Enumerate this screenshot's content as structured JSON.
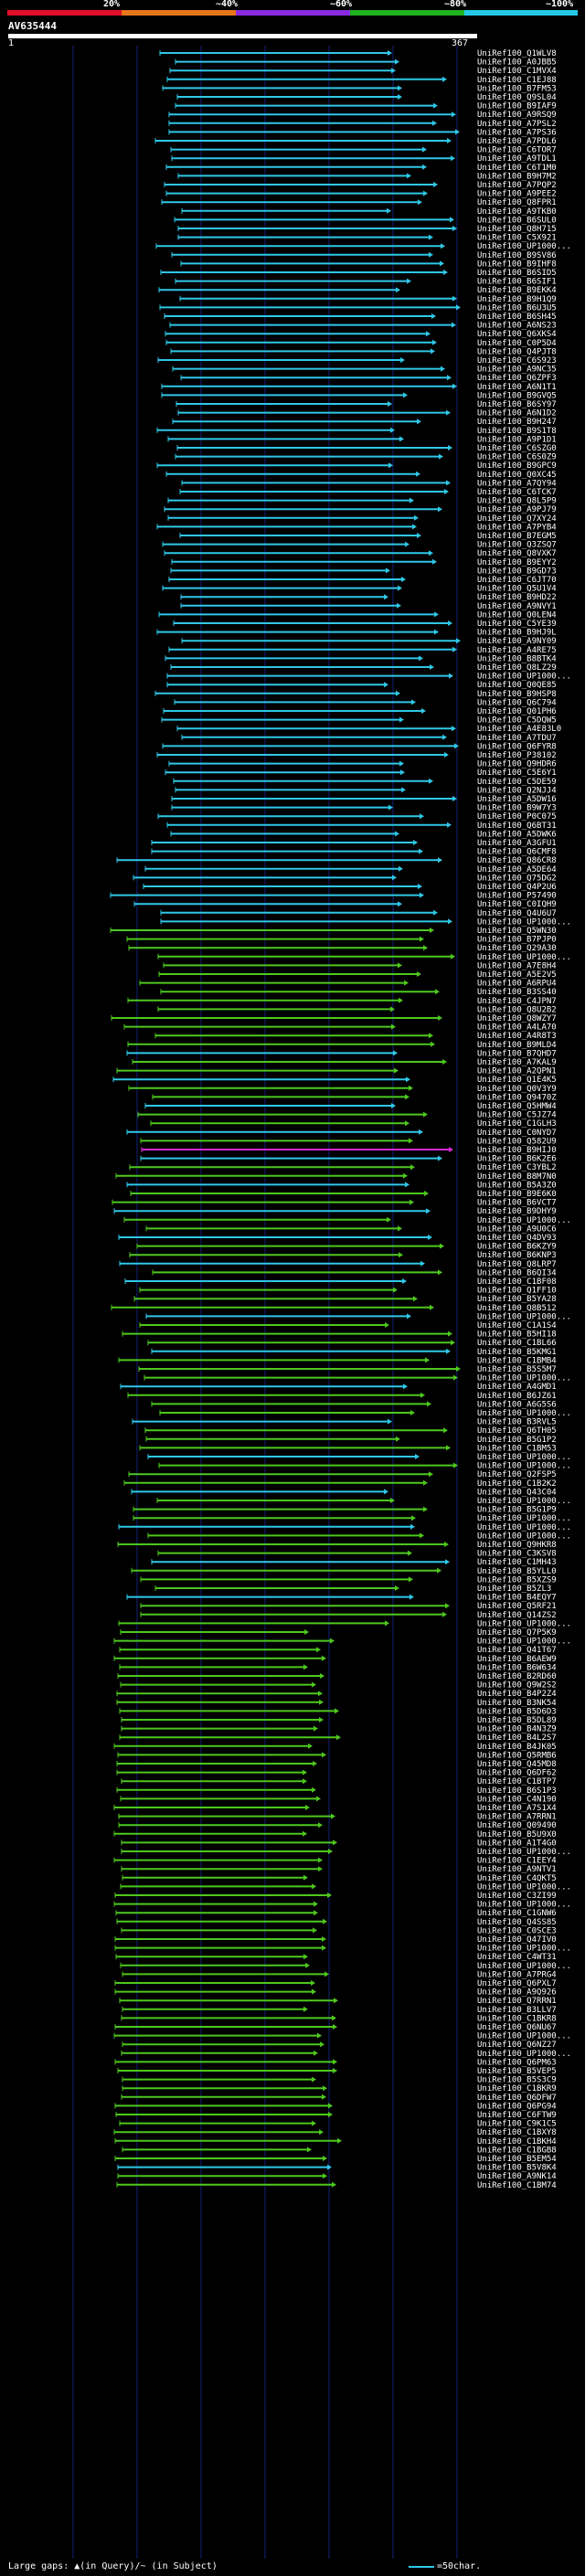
{
  "header": {
    "percent_labels": [
      "20%",
      "~40%",
      "~60%",
      "~80%",
      "~100%"
    ],
    "legend_colors": [
      "#e0102a",
      "#e8761a",
      "#8a2be2",
      "#21b221",
      "#24c8e6"
    ]
  },
  "query": {
    "id": "AV635444",
    "start": "1",
    "length": "367"
  },
  "palette": {
    "cyan": "#2fc8e8",
    "green": "#4ec81e",
    "magenta": "#d22ad2",
    "grid": "#16227a",
    "label": "#ffffff"
  },
  "hits": [
    "UniRef100_Q1WLV8",
    "UniRef100_A0JBB5",
    "UniRef100_C1MVX4",
    "UniRef100_C1EJ88",
    "UniRef100_B7FM53",
    "UniRef100_Q9SL04",
    "UniRef100_B9IAF9",
    "UniRef100_A9RSQ9",
    "UniRef100_A7PSL2",
    "UniRef100_A7PS36",
    "UniRef100_A7PDL6",
    "UniRef100_C6TOR7",
    "UniRef100_A9TDL1",
    "UniRef100_C6T1M0",
    "UniRef100_B9H7M2",
    "UniRef100_A7PQP2",
    "UniRef100_A9PEE2",
    "UniRef100_Q8FPR1",
    "UniRef100_A9TKB0",
    "UniRef100_B6SUL0",
    "UniRef100_Q8H715",
    "UniRef100_C5X921",
    "UniRef100_UP1000...",
    "UniRef100_B9SV86",
    "UniRef100_B9IHF8",
    "UniRef100_B6SID5",
    "UniRef100_B6SIF1",
    "UniRef100_B9EKK4",
    "UniRef100_B9H1Q9",
    "UniRef100_B6U3U5",
    "UniRef100_B6SH45",
    "UniRef100_A6NS23",
    "UniRef100_Q6XKS4",
    "UniRef100_C0P5D4",
    "UniRef100_Q4PJT8",
    "UniRef100_C6S923",
    "UniRef100_A9NC35",
    "UniRef100_Q6ZPF3",
    "UniRef100_A6N1T1",
    "UniRef100_B9GVQ5",
    "UniRef100_B6SY97",
    "UniRef100_A6N1D2",
    "UniRef100_B9H247",
    "UniRef100_B9S1T8",
    "UniRef100_A9P1D1",
    "UniRef100_C6SZG0",
    "UniRef100_C6S0Z9",
    "UniRef100_B9GPC9",
    "UniRef100_Q0XC45",
    "UniRef100_A7QY94",
    "UniRef100_C6TCK7",
    "UniRef100_Q8L5P9",
    "UniRef100_A9PJ79",
    "UniRef100_Q7XY24",
    "UniRef100_A7PYB4",
    "UniRef100_B7EGM5",
    "UniRef100_Q3ZSQ7",
    "UniRef100_Q8VXK7",
    "UniRef100_B9EYY2",
    "UniRef100_B9GD73",
    "UniRef100_C6JT70",
    "UniRef100_Q5U1V4",
    "UniRef100_B9HD22",
    "UniRef100_A9NVY1",
    "UniRef100_Q0LEN4",
    "UniRef100_C5YE39",
    "UniRef100_B9HJ9L",
    "UniRef100_A9NY09",
    "UniRef100_A4RE75",
    "UniRef100_B8BTK4",
    "UniRef100_Q8LZ29",
    "UniRef100_UP1000...",
    "UniRef100_Q0QE85",
    "UniRef100_B9HSP8",
    "UniRef100_Q6C794",
    "UniRef100_Q01PH6",
    "UniRef100_C5DQW5",
    "UniRef100_A4E83L0",
    "UniRef100_A7TDU7",
    "UniRef100_Q6FYR8",
    "UniRef100_P38102",
    "UniRef100_Q9HDR6",
    "UniRef100_C5E6Y1",
    "UniRef100_C5DE59",
    "UniRef100_Q2NJJ4",
    "UniRef100_A5DW16",
    "UniRef100_B9W7Y3",
    "UniRef100_P0C075",
    "UniRef100_Q6BT31",
    "UniRef100_A5DWK6",
    "UniRef100_A3GFU1",
    "UniRef100_Q6CMF8",
    "UniRef100_Q86CR8",
    "UniRef100_A5DE64",
    "UniRef100_Q75DG2",
    "UniRef100_Q4P2U6",
    "UniRef100_P57490",
    "UniRef100_C0IQH9",
    "UniRef100_Q4U6U7",
    "UniRef100_UP1000...",
    "UniRef100_Q5WN30",
    "UniRef100_B7PJP0",
    "UniRef100_Q29A30",
    "UniRef100_UP1000...",
    "UniRef100_A7E8H4",
    "UniRef100_A5E2V5",
    "UniRef100_A6RPU4",
    "UniRef100_B3SS40",
    "UniRef100_C4JPN7",
    "UniRef100_Q8U2B2",
    "UniRef100_Q8WZY7",
    "UniRef100_A4LA70",
    "UniRef100_A4R8T3",
    "UniRef100_B9MLD4",
    "UniRef100_B7QHD7",
    "UniRef100_A7KAL9",
    "UniRef100_A2QPN1",
    "UniRef100_Q1E4K5",
    "UniRef100_Q0V3Y9",
    "UniRef100_Q9470Z",
    "UniRef100_Q5HMW4",
    "UniRef100_C5JZ74",
    "UniRef100_C1GLH3",
    "UniRef100_C0NYD7",
    "UniRef100_Q582U9",
    "UniRef100_B9HIJ0",
    "UniRef100_B6K2E6",
    "UniRef100_C3YBL2",
    "UniRef100_B8M7N0",
    "UniRef100_B5A3Z0",
    "UniRef100_B9E6K0",
    "UniRef100_B6VCT7",
    "UniRef100_B9DHY9",
    "UniRef100_UP1000...",
    "UniRef100_A9U0C6",
    "UniRef100_Q4DV93",
    "UniRef100_B6KZY9",
    "UniRef100_B6KNP3",
    "UniRef100_Q8LRP7",
    "UniRef100_B6QI34",
    "UniRef100_C1BF08",
    "UniRef100_Q1FF10",
    "UniRef100_B5YA28",
    "UniRef100_Q8B512",
    "UniRef100_UP1000...",
    "UniRef100_C1A1S4",
    "UniRef100_B5HI18",
    "UniRef100_C1BL66",
    "UniRef100_B5KMG1",
    "UniRef100_C1BMB4",
    "UniRef100_B5S5M7",
    "UniRef100_UP1000...",
    "UniRef100_A4GMD1",
    "UniRef100_B6JZ61",
    "UniRef100_A6G5S6",
    "UniRef100_UP1000...",
    "UniRef100_B3RVL5",
    "UniRef100_Q6TH05",
    "UniRef100_B5G1P2",
    "UniRef100_C1BM53",
    "UniRef100_UP1000...",
    "UniRef100_UP1000...",
    "UniRef100_Q2FSP5",
    "UniRef100_C1B2K2",
    "UniRef100_Q43C04",
    "UniRef100_UP1000...",
    "UniRef100_B5G1P9",
    "UniRef100_UP1000...",
    "UniRef100_UP1000...",
    "UniRef100_UP1000...",
    "UniRef100_Q9HKR8",
    "UniRef100_C3KSV8",
    "UniRef100_C1MH43",
    "UniRef100_B5YLL0",
    "UniRef100_B5XZS9",
    "UniRef100_B5ZL3",
    "UniRef100_B4EQY7",
    "UniRef100_Q5RF21",
    "UniRef100_Q14ZS2",
    "UniRef100_UP1000...",
    "UniRef100_Q7P5K9",
    "UniRef100_UP1000...",
    "UniRef100_Q41T67",
    "UniRef100_B6AEW9",
    "UniRef100_B6W634",
    "UniRef100_B2RD60",
    "UniRef100_Q9W2S2",
    "UniRef100_B4P2Z4",
    "UniRef100_B3NK54",
    "UniRef100_B5D6D3",
    "UniRef100_B5DL89",
    "UniRef100_B4N3Z9",
    "UniRef100_B4L2S7",
    "UniRef100_B4JK05",
    "UniRef100_Q5RMB6",
    "UniRef100_Q45MD8",
    "UniRef100_Q6DF62",
    "UniRef100_C1BTP7",
    "UniRef100_B6S1P3",
    "UniRef100_C4N190",
    "UniRef100_A7S1X4",
    "UniRef100_A7RRN1",
    "UniRef100_Q09490",
    "UniRef100_B5U9X0",
    "UniRef100_A1T4G0",
    "UniRef100_UP1000...",
    "UniRef100_C1EEY4",
    "UniRef100_A9NTV1",
    "UniRef100_C4QKT5",
    "UniRef100_UP1000...",
    "UniRef100_C3ZI99",
    "UniRef100_UP1000...",
    "UniRef100_C1GNW6",
    "UniRef100_Q4SS85",
    "UniRef100_C0SCE3",
    "UniRef100_Q47IV0",
    "UniRef100_UP1000...",
    "UniRef100_C4WT31",
    "UniRef100_UP1000...",
    "UniRef100_A7PRG4",
    "UniRef100_Q6PXL7",
    "UniRef100_A9Q926",
    "UniRef100_Q7RRN1",
    "UniRef100_B3LLV7",
    "UniRef100_C1BKR8",
    "UniRef100_Q6NU67",
    "UniRef100_UP1000...",
    "UniRef100_Q6NZ27",
    "UniRef100_UP1000...",
    "UniRef100_Q6PM63",
    "UniRef100_B5VEP5",
    "UniRef100_B5S3C9",
    "UniRef100_C1BKR9",
    "UniRef100_Q6DFW7",
    "UniRef100_Q6PG94",
    "UniRef100_C6FTW9",
    "UniRef100_C9K1C5",
    "UniRef100_C1BXY8",
    "UniRef100_C1BKH4",
    "UniRef100_C1BGB8",
    "UniRef100_B5EM54",
    "UniRef100_B5V8K4",
    "UniRef100_A9NK14",
    "UniRef100_C1BM74"
  ],
  "footer": {
    "gaps_text": "Large gaps: ▲(in Query)/~ (in Subject)",
    "key_label": "=50char."
  }
}
